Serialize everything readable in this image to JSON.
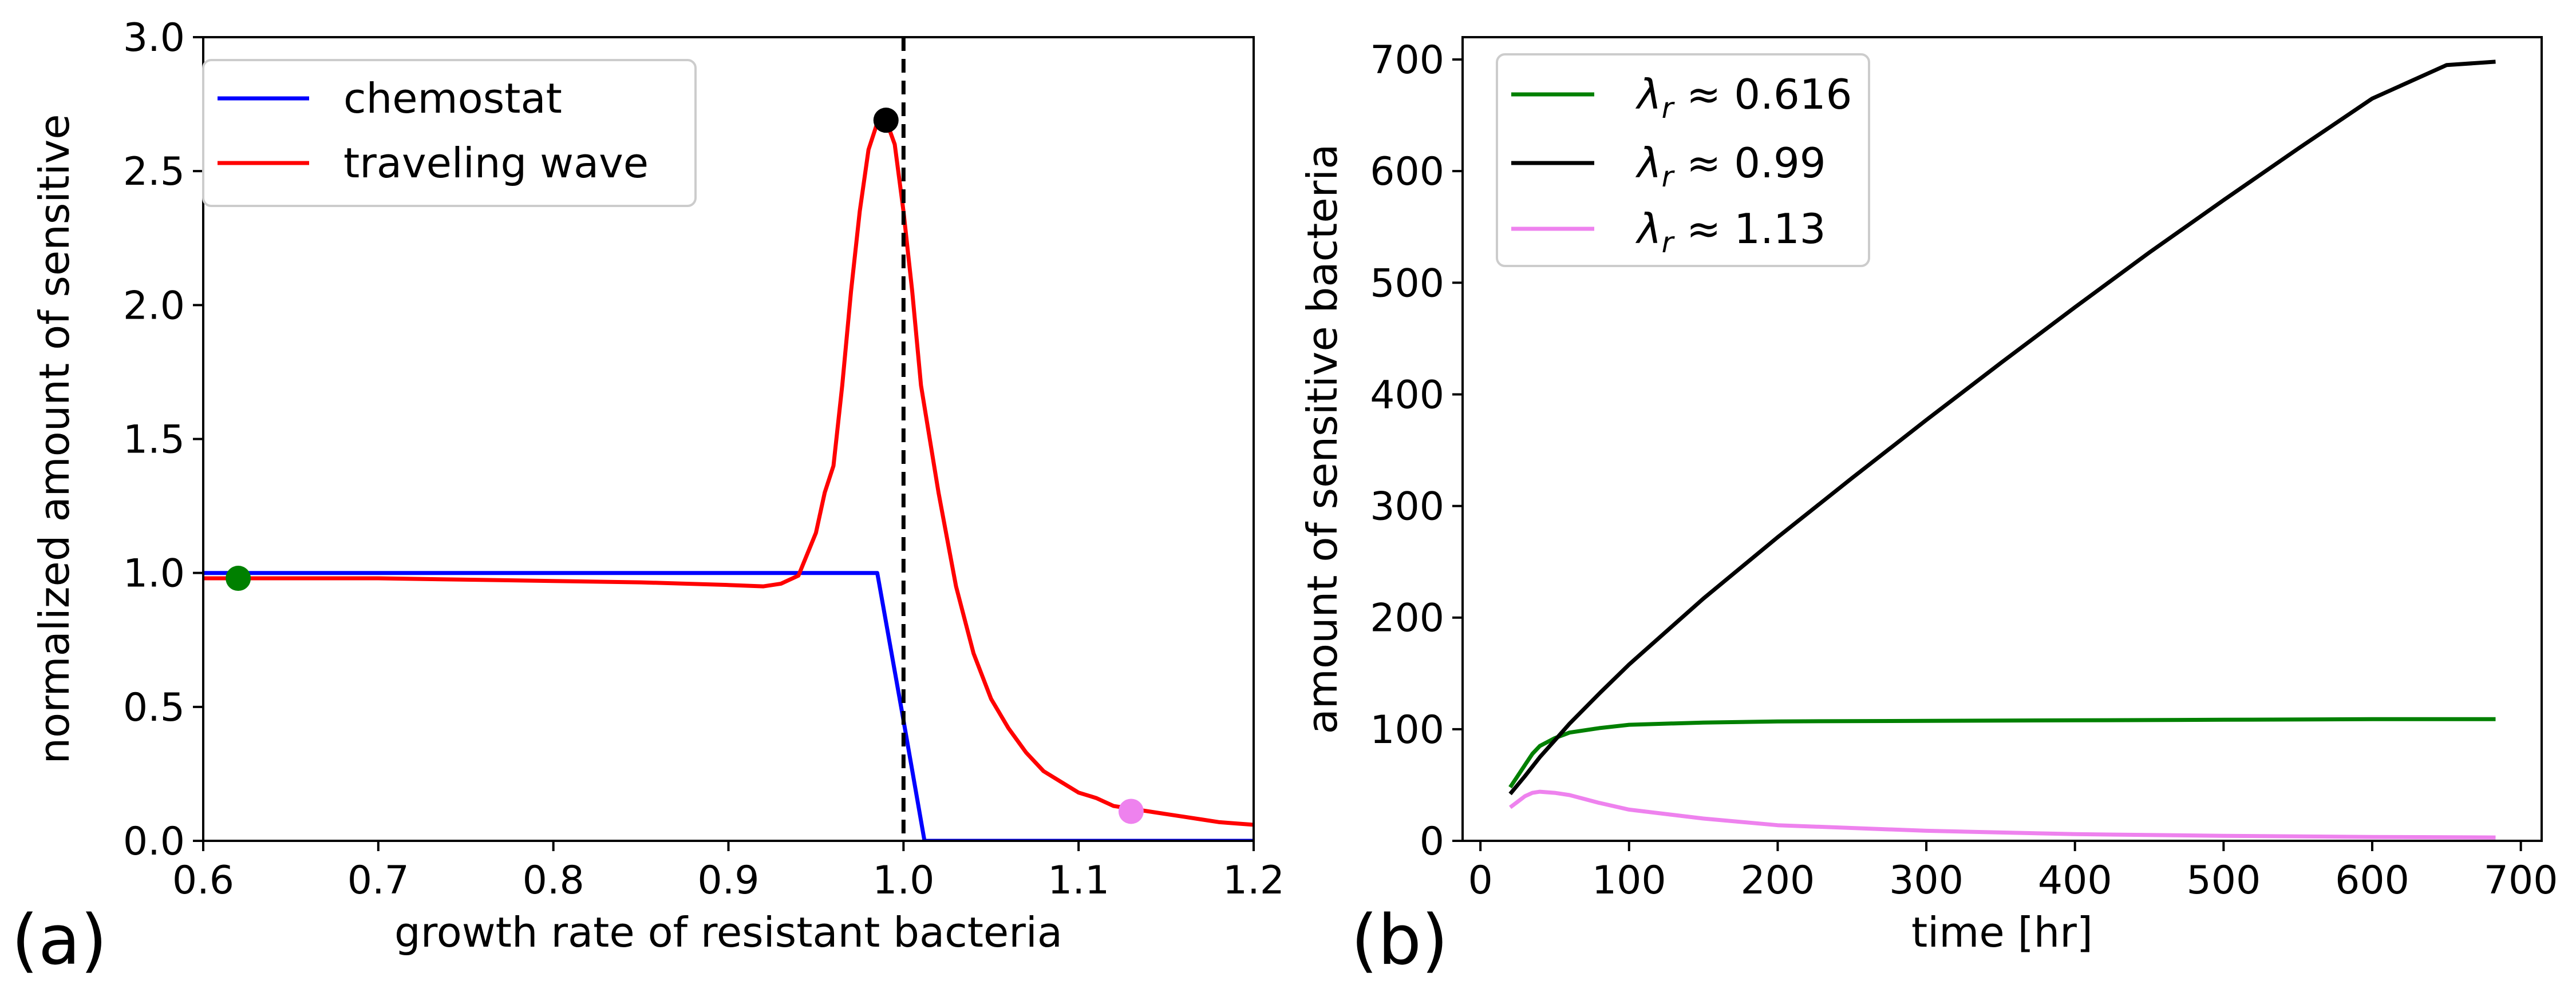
{
  "chart_data": [
    {
      "type": "line",
      "panel_label": "(a)",
      "xlabel": "growth rate of resistant bacteria",
      "ylabel": "normalized amount of sensitive",
      "xlim": [
        0.6,
        1.2
      ],
      "ylim": [
        0.0,
        3.0
      ],
      "xticks": [
        "0.6",
        "0.7",
        "0.8",
        "0.9",
        "1.0",
        "1.1",
        "1.2"
      ],
      "yticks": [
        "0.0",
        "0.5",
        "1.0",
        "1.5",
        "2.0",
        "2.5",
        "3.0"
      ],
      "grid": false,
      "legend_position": "top-left",
      "vline": {
        "x": 1.0,
        "style": "dashed",
        "color": "#000000"
      },
      "series": [
        {
          "name": "chemostat",
          "color": "#0000ff",
          "x": [
            0.6,
            0.985,
            1.0,
            1.012,
            1.2
          ],
          "y": [
            1.0,
            1.0,
            0.45,
            0.0,
            0.0
          ]
        },
        {
          "name": "traveling wave",
          "color": "#ff0000",
          "x": [
            0.6,
            0.65,
            0.7,
            0.75,
            0.8,
            0.85,
            0.9,
            0.92,
            0.93,
            0.94,
            0.95,
            0.955,
            0.96,
            0.965,
            0.97,
            0.975,
            0.98,
            0.985,
            0.99,
            0.995,
            1.0,
            1.005,
            1.01,
            1.02,
            1.03,
            1.04,
            1.05,
            1.06,
            1.07,
            1.08,
            1.09,
            1.1,
            1.11,
            1.12,
            1.13,
            1.14,
            1.15,
            1.16,
            1.17,
            1.18,
            1.19,
            1.2
          ],
          "y": [
            0.98,
            0.98,
            0.98,
            0.975,
            0.97,
            0.965,
            0.955,
            0.95,
            0.96,
            0.99,
            1.15,
            1.3,
            1.4,
            1.7,
            2.05,
            2.35,
            2.58,
            2.68,
            2.69,
            2.6,
            2.35,
            2.05,
            1.7,
            1.3,
            0.95,
            0.7,
            0.53,
            0.42,
            0.33,
            0.26,
            0.22,
            0.18,
            0.16,
            0.13,
            0.12,
            0.11,
            0.1,
            0.09,
            0.08,
            0.07,
            0.065,
            0.06
          ]
        }
      ],
      "markers": [
        {
          "x": 0.62,
          "y": 0.98,
          "color": "#008000"
        },
        {
          "x": 0.99,
          "y": 2.69,
          "color": "#000000"
        },
        {
          "x": 1.13,
          "y": 0.11,
          "color": "#ee82ee"
        }
      ]
    },
    {
      "type": "line",
      "panel_label": "(b)",
      "xlabel": "time [hr]",
      "ylabel": "amount of sensitive bacteria",
      "xlim": [
        -12,
        714
      ],
      "ylim": [
        0,
        720
      ],
      "xticks": [
        "0",
        "100",
        "200",
        "300",
        "400",
        "500",
        "600",
        "700"
      ],
      "yticks": [
        "0",
        "100",
        "200",
        "300",
        "400",
        "500",
        "600",
        "700"
      ],
      "grid": false,
      "legend_position": "top-left",
      "series": [
        {
          "name_prefix": "λ",
          "name_sub": "r",
          "name_rest": " ≈ 0.616",
          "color": "#008000",
          "x": [
            20,
            25,
            30,
            35,
            40,
            50,
            60,
            80,
            100,
            150,
            200,
            300,
            400,
            500,
            600,
            683
          ],
          "y": [
            48,
            58,
            68,
            78,
            85,
            92,
            97,
            101,
            104,
            106,
            107,
            107.5,
            108,
            108.5,
            109,
            109
          ]
        },
        {
          "name_prefix": "λ",
          "name_sub": "r",
          "name_rest": " ≈ 0.99",
          "color": "#000000",
          "x": [
            20,
            30,
            40,
            50,
            60,
            80,
            100,
            150,
            200,
            250,
            300,
            350,
            400,
            450,
            500,
            550,
            600,
            650,
            683
          ],
          "y": [
            42,
            58,
            75,
            90,
            105,
            132,
            158,
            217,
            272,
            325,
            377,
            428,
            478,
            527,
            574,
            620,
            665,
            695,
            698
          ]
        },
        {
          "name_prefix": "λ",
          "name_sub": "r",
          "name_rest": " ≈ 1.13",
          "color": "#ee82ee",
          "x": [
            20,
            25,
            30,
            35,
            40,
            50,
            60,
            80,
            100,
            150,
            200,
            300,
            400,
            500,
            600,
            683
          ],
          "y": [
            30,
            35,
            40,
            43,
            44,
            43,
            41,
            34,
            28,
            20,
            14,
            9,
            6,
            4.5,
            3.5,
            3
          ]
        }
      ]
    }
  ]
}
